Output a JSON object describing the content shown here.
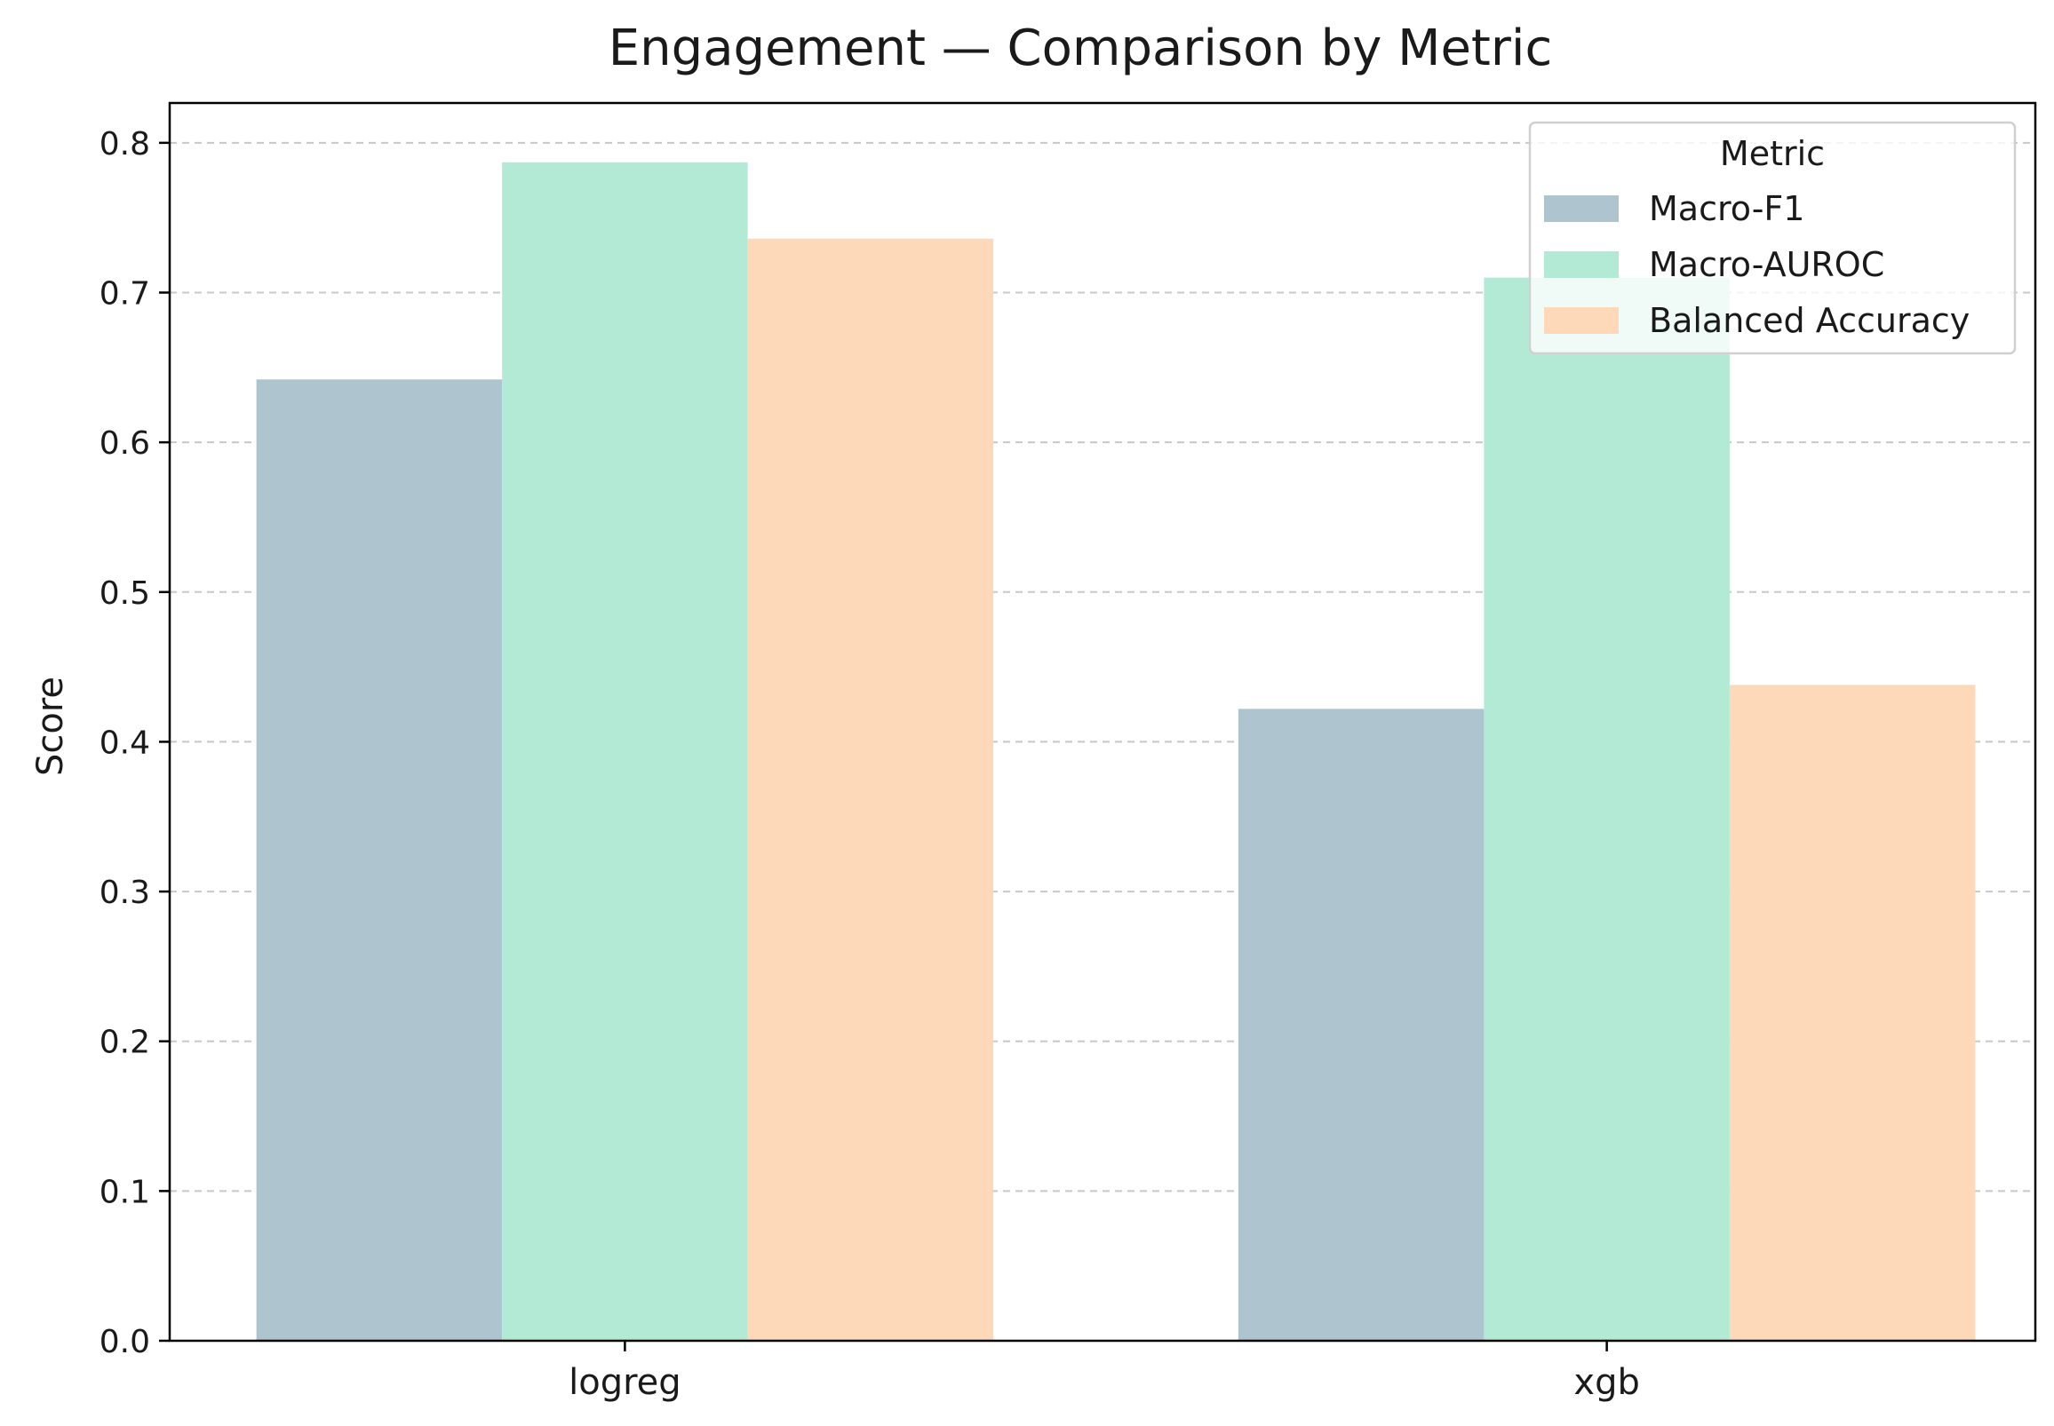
{
  "chart_data": {
    "type": "bar",
    "title": "Engagement — Comparison by Metric",
    "xlabel": "",
    "ylabel": "Score",
    "categories": [
      "logreg",
      "xgb"
    ],
    "series": [
      {
        "name": "Macro-F1",
        "values": [
          0.642,
          0.422
        ],
        "color": "#AEC4CE"
      },
      {
        "name": "Macro-AUROC",
        "values": [
          0.787,
          0.71
        ],
        "color": "#B3EAD6"
      },
      {
        "name": "Balanced Accuracy",
        "values": [
          0.736,
          0.438
        ],
        "color": "#FDD9B9"
      }
    ],
    "ylim": [
      0,
      0.8266
    ],
    "yticks": [
      "0.0",
      "0.1",
      "0.2",
      "0.3",
      "0.4",
      "0.5",
      "0.6",
      "0.7",
      "0.8"
    ],
    "grid": "y-dashed",
    "legend": {
      "title": "Metric",
      "placement": "top-right"
    }
  }
}
